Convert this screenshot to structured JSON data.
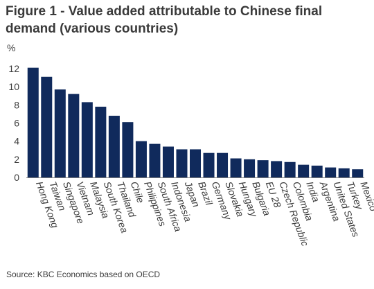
{
  "chart_data": {
    "type": "bar",
    "title": "Figure 1 - Value added attributable to Chinese final demand (various countries)",
    "ylabel": "%",
    "xlabel": "",
    "ylim": [
      0,
      12
    ],
    "yticks": [
      0,
      2,
      4,
      6,
      8,
      10,
      12
    ],
    "grid": false,
    "legend": "none",
    "bar_color": "#102a5c",
    "categories": [
      "Hong Kong",
      "Taiwan",
      "Singapore",
      "Vietnam",
      "Malaysia",
      "South Korea",
      "Thailand",
      "Chile",
      "Philippines",
      "South Africa",
      "Indonesia",
      "Japan",
      "Brazil",
      "Germany",
      "Slovakia",
      "Hungary",
      "Bulgaria",
      "EU 28",
      "Czech Republic",
      "Colombia",
      "India",
      "Argentina",
      "United States",
      "Turkey",
      "Mexico"
    ],
    "values": [
      12.1,
      11.1,
      9.7,
      9.2,
      8.3,
      7.8,
      6.8,
      6.1,
      4.0,
      3.7,
      3.4,
      3.1,
      3.1,
      2.7,
      2.7,
      2.1,
      2.0,
      1.9,
      1.8,
      1.7,
      1.4,
      1.3,
      1.1,
      1.0,
      0.9
    ],
    "source": "Source: KBC Economics based on OECD"
  }
}
